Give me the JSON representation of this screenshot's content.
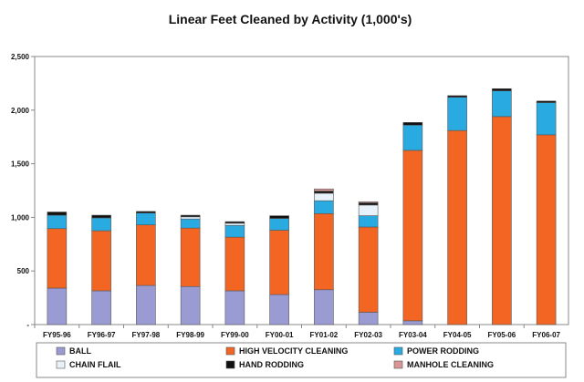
{
  "chart_data": {
    "type": "bar",
    "stacked": true,
    "title": "Linear Feet Cleaned by Activity (1,000's)",
    "xlabel": "",
    "ylabel": "",
    "ylim": [
      0,
      2500
    ],
    "yticks": [
      "-",
      "500",
      "1,000",
      "1,500",
      "2,000",
      "2,500"
    ],
    "grid": false,
    "legend_position": "bottom",
    "categories": [
      "FY95-96",
      "FY96-97",
      "FY97-98",
      "FY98-99",
      "FY99-00",
      "FY00-01",
      "FY01-02",
      "FY02-03",
      "FY03-04",
      "FY04-05",
      "FY05-06",
      "FY06-07"
    ],
    "series": [
      {
        "name": "BALL",
        "color": "#9b9bd4",
        "values": [
          340,
          315,
          365,
          355,
          315,
          280,
          325,
          115,
          35,
          0,
          0,
          0
        ]
      },
      {
        "name": "HIGH VELOCITY CLEANING",
        "color": "#f26522",
        "values": [
          555,
          560,
          565,
          545,
          500,
          600,
          710,
          795,
          1590,
          1810,
          1940,
          1770
        ]
      },
      {
        "name": "POWER RODDING",
        "color": "#29abe2",
        "values": [
          125,
          120,
          110,
          85,
          110,
          110,
          120,
          105,
          235,
          310,
          240,
          300
        ]
      },
      {
        "name": "CHAIN FLAIL",
        "color": "#e8f2fa",
        "values": [
          0,
          0,
          0,
          20,
          20,
          0,
          70,
          100,
          0,
          0,
          0,
          0
        ]
      },
      {
        "name": "HAND RODDING",
        "color": "#111111",
        "values": [
          30,
          25,
          15,
          15,
          15,
          25,
          20,
          20,
          25,
          15,
          20,
          15
        ]
      },
      {
        "name": "MANHOLE CLEANING",
        "color": "#d99694",
        "values": [
          0,
          0,
          0,
          0,
          0,
          0,
          20,
          10,
          0,
          0,
          0,
          0
        ]
      }
    ]
  }
}
